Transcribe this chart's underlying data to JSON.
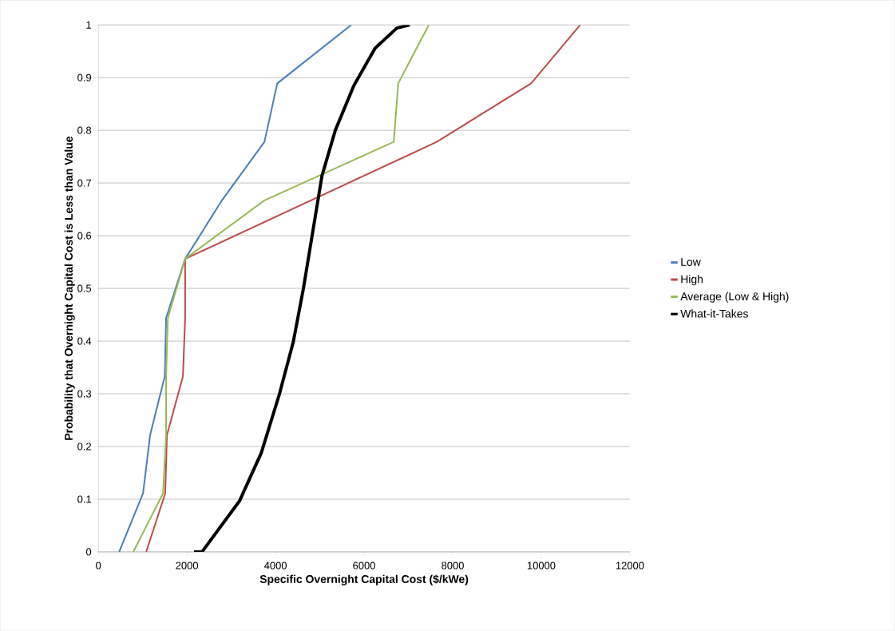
{
  "chart_data": {
    "type": "line",
    "xlabel": "Specific Overnight Capital Cost ($/kWe)",
    "ylabel": "Probability that Overnight Capital Cost is Less than Value",
    "xlim": [
      0,
      12000
    ],
    "ylim": [
      0,
      1
    ],
    "xticks": [
      0,
      2000,
      4000,
      6000,
      8000,
      10000,
      12000
    ],
    "yticks": [
      0,
      0.1,
      0.2,
      0.3,
      0.4,
      0.5,
      0.6,
      0.7,
      0.8,
      0.9,
      1
    ],
    "grid": "y",
    "legend": "right",
    "series": [
      {
        "name": "Low",
        "color": "#4a7ebb",
        "x": [
          470,
          1010,
          1170,
          1500,
          1530,
          1960,
          2790,
          3750,
          4040,
          5710
        ],
        "values": [
          0,
          0.111,
          0.222,
          0.333,
          0.444,
          0.556,
          0.667,
          0.778,
          0.889,
          1
        ]
      },
      {
        "name": "High",
        "color": "#be4b48",
        "x": [
          1080,
          1510,
          1550,
          1910,
          1960,
          1960,
          7640,
          9770,
          10880
        ],
        "values": [
          0,
          0.111,
          0.222,
          0.333,
          0.444,
          0.556,
          0.778,
          0.889,
          1
        ]
      },
      {
        "name": "Average (Low & High)",
        "color": "#98b954",
        "x": [
          790,
          1460,
          1530,
          1530,
          1570,
          1960,
          3750,
          6670,
          6770,
          7460
        ],
        "values": [
          0,
          0.111,
          0.222,
          0.333,
          0.444,
          0.556,
          0.667,
          0.778,
          0.889,
          1
        ]
      },
      {
        "name": "What-it-Takes",
        "color": "#000000",
        "x": [
          2160,
          2340,
          3190,
          3680,
          4090,
          4400,
          4630,
          5050,
          5350,
          5770,
          6250,
          6740,
          7030
        ],
        "values": [
          0,
          0,
          0.097,
          0.188,
          0.3,
          0.398,
          0.5,
          0.714,
          0.8,
          0.885,
          0.956,
          0.994,
          1
        ]
      }
    ]
  }
}
